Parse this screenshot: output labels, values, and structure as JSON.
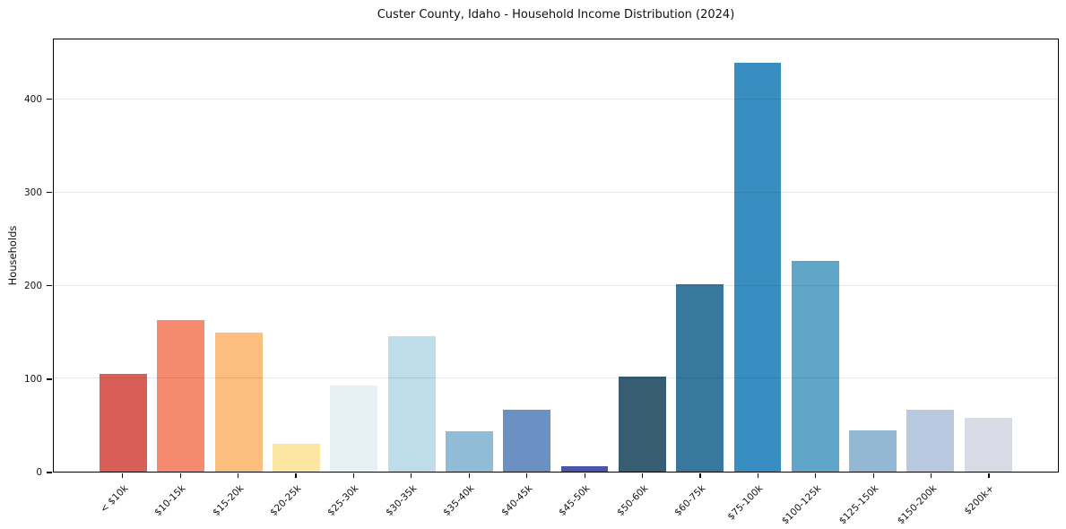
{
  "chart_data": {
    "type": "bar",
    "title": "Custer County, Idaho - Household Income Distribution (2024)",
    "xlabel": "",
    "ylabel": "Households",
    "categories": [
      "< $10k",
      "$10-15k",
      "$15-20k",
      "$20-25k",
      "$25-30k",
      "$30-35k",
      "$35-40k",
      "$40-45k",
      "$45-50k",
      "$50-60k",
      "$60-75k",
      "$75-100k",
      "$100-125k",
      "$125-150k",
      "$150-200k",
      "$200k+"
    ],
    "values": [
      105,
      163,
      150,
      30,
      93,
      146,
      43,
      67,
      6,
      102,
      202,
      440,
      227,
      44,
      67,
      58
    ],
    "bar_colors": [
      "#d85f55",
      "#f58a6e",
      "#fcbe7e",
      "#fde5a4",
      "#e7f1f4",
      "#bedcea",
      "#90bcd8",
      "#6b90c4",
      "#4c56a6",
      "#375d73",
      "#38789e",
      "#398ec1",
      "#60a6c8",
      "#92b8d4",
      "#b9c9df",
      "#d8dae6"
    ],
    "ylim": [
      0,
      465
    ],
    "yticks": [
      0,
      100,
      200,
      300,
      400
    ],
    "grid": "horizontal",
    "grid_color": "#e8e8e8",
    "axis_color": "#000000",
    "background": "#ffffff",
    "legend": "none",
    "xtick_rotation_deg": 45
  }
}
